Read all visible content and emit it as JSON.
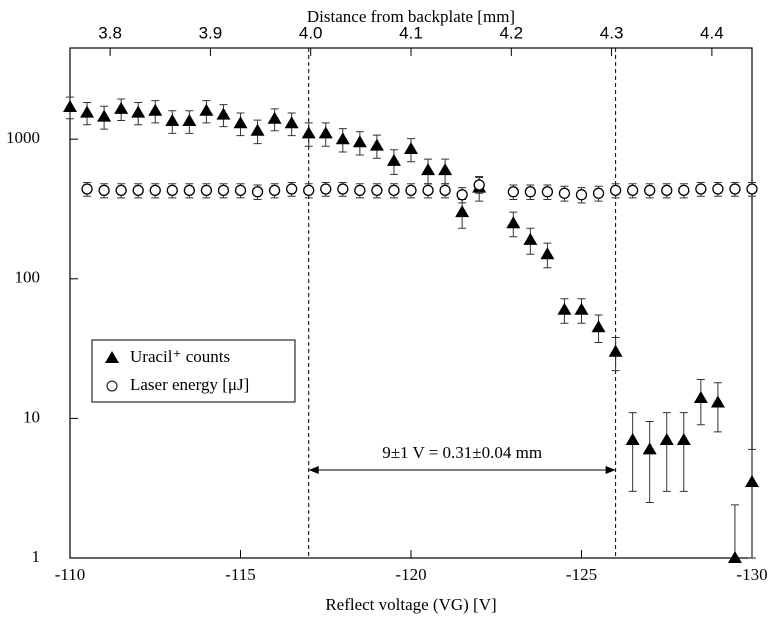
{
  "chart_data": {
    "type": "scatter",
    "title": null,
    "xlabel": "Reflect voltage (VG)  [V]",
    "x2label": "Distance from backplate [mm]",
    "xlim": [
      -110,
      -130
    ],
    "xticks": [
      -110,
      -115,
      -120,
      -125,
      -130
    ],
    "x2lim": [
      3.76,
      4.44
    ],
    "x2ticks": [
      3.8,
      3.9,
      {
        "value": 4,
        "label": "4.0"
      },
      4.1,
      4.2,
      4.3,
      4.4
    ],
    "ylim": [
      1,
      4500
    ],
    "yticks": [
      1,
      10,
      100,
      1000
    ],
    "log_y": true,
    "legend": "left",
    "vlines": [
      -117,
      -126
    ],
    "annotation": "9±1 V = 0.31±0.04 mm",
    "series": [
      {
        "name": "Uracil⁺ counts",
        "marker": "triangle",
        "color": "#000000",
        "x": [
          -110,
          -110.5,
          -111,
          -111.5,
          -112,
          -112.5,
          -113,
          -113.5,
          -114,
          -114.5,
          -115,
          -115.5,
          -116,
          -116.5,
          -117,
          -117.5,
          -118,
          -118.5,
          -119,
          -119.5,
          -120,
          -120.5,
          -121,
          -121.5,
          -122,
          -123,
          -123.5,
          -124,
          -124.5,
          -125,
          -125.5,
          -126,
          -126.5,
          -127,
          -127.5,
          -128,
          -128.5,
          -129,
          -129.5,
          -130
        ],
        "values": [
          1700,
          1550,
          1450,
          1650,
          1550,
          1600,
          1350,
          1350,
          1600,
          1500,
          1300,
          1150,
          1400,
          1300,
          1100,
          1100,
          1000,
          950,
          900,
          700,
          850,
          600,
          600,
          300,
          450,
          250,
          190,
          150,
          60,
          60,
          45,
          30,
          7,
          6,
          7,
          7,
          14,
          13,
          1,
          3.5
        ],
        "errors": [
          300,
          280,
          270,
          290,
          280,
          290,
          250,
          250,
          290,
          270,
          240,
          220,
          250,
          240,
          210,
          210,
          190,
          180,
          170,
          140,
          160,
          120,
          120,
          70,
          90,
          50,
          40,
          30,
          12,
          12,
          10,
          8,
          4,
          3.5,
          4,
          4,
          5,
          5,
          1.4,
          2.5
        ]
      },
      {
        "name": "Laser energy [μJ]",
        "marker": "circle",
        "color": "#000000",
        "x": [
          -110.5,
          -111,
          -111.5,
          -112,
          -112.5,
          -113,
          -113.5,
          -114,
          -114.5,
          -115,
          -115.5,
          -116,
          -116.5,
          -117,
          -117.5,
          -118,
          -118.5,
          -119,
          -119.5,
          -120,
          -120.5,
          -121,
          -121.5,
          -122,
          -123,
          -123.5,
          -124,
          -124.5,
          -125,
          -125.5,
          -126,
          -126.5,
          -127,
          -127.5,
          -128,
          -128.5,
          -129,
          -129.5,
          -130
        ],
        "values": [
          440,
          430,
          430,
          430,
          430,
          430,
          430,
          430,
          430,
          430,
          420,
          430,
          440,
          430,
          440,
          440,
          430,
          430,
          430,
          430,
          430,
          430,
          400,
          470,
          420,
          420,
          420,
          410,
          400,
          410,
          430,
          430,
          430,
          430,
          430,
          440,
          440,
          440,
          440
        ],
        "errors": [
          50,
          50,
          50,
          50,
          50,
          50,
          50,
          50,
          50,
          50,
          50,
          50,
          50,
          50,
          50,
          50,
          50,
          50,
          50,
          50,
          50,
          50,
          50,
          60,
          50,
          50,
          50,
          50,
          50,
          50,
          50,
          50,
          50,
          50,
          50,
          50,
          50,
          50,
          50
        ]
      }
    ]
  }
}
